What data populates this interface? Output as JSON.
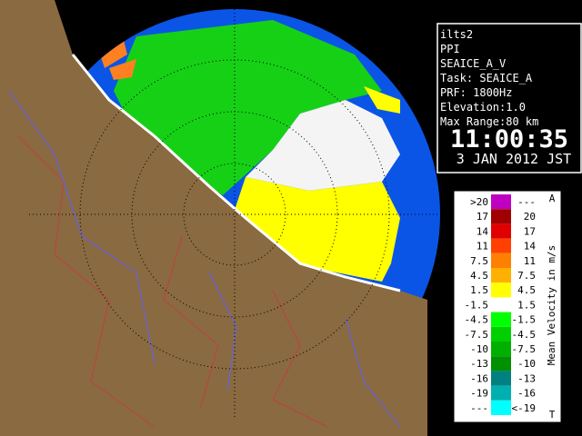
{
  "info": {
    "lines": [
      "ilts2",
      "PPI",
      "SEAICE_A_V",
      "Task: SEAICE_A",
      "PRF: 1800Hz",
      "Elevation:1.0",
      "Max Range:80 km"
    ],
    "time": "11:00:35",
    "date": "3 JAN 2012 JST"
  },
  "legend": {
    "title": "Mean Velocity in m/s",
    "top_mark": "A",
    "bottom_mark": "T",
    "rows": [
      {
        "low": ">20",
        "high": "---",
        "color": "#c000c0"
      },
      {
        "low": "17",
        "high": "20",
        "color": "#a00000"
      },
      {
        "low": "14",
        "high": "17",
        "color": "#e00000"
      },
      {
        "low": "11",
        "high": "14",
        "color": "#ff4000"
      },
      {
        "low": "7.5",
        "high": "11",
        "color": "#ff8000"
      },
      {
        "low": "4.5",
        "high": "7.5",
        "color": "#ffb000"
      },
      {
        "low": "1.5",
        "high": "4.5",
        "color": "#ffff00"
      },
      {
        "low": "-1.5",
        "high": "1.5",
        "color": "#ffffff"
      },
      {
        "low": "-4.5",
        "high": "-1.5",
        "color": "#00ff00"
      },
      {
        "low": "-7.5",
        "high": "-4.5",
        "color": "#00d000"
      },
      {
        "low": "-10",
        "high": "-7.5",
        "color": "#00b000"
      },
      {
        "low": "-13",
        "high": "-10",
        "color": "#009000"
      },
      {
        "low": "-16",
        "high": "-13",
        "color": "#008080"
      },
      {
        "low": "-19",
        "high": "-16",
        "color": "#00b0b0"
      },
      {
        "low": "---",
        "high": "<-19",
        "color": "#00ffff"
      }
    ]
  }
}
